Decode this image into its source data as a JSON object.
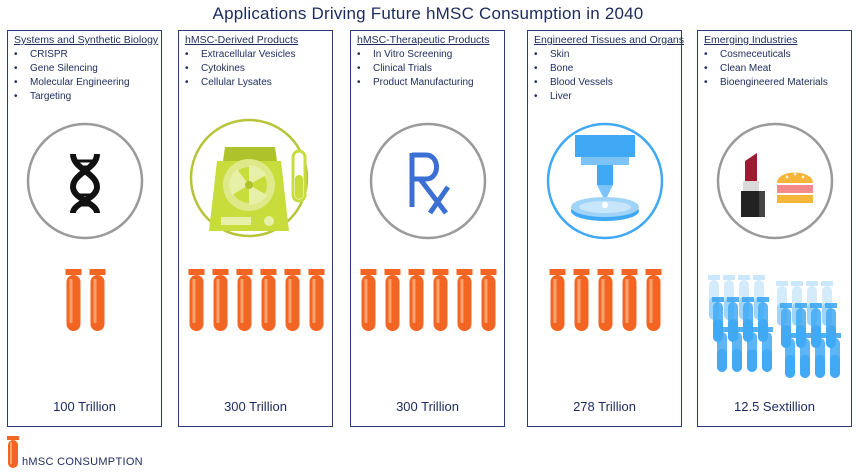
{
  "title": "Applications Driving Future hMSC Consumption in 2040",
  "colors": {
    "frame": "#2b3a78",
    "text": "#1d2a5c",
    "tube_orange": "#f26522",
    "tube_orange_light": "#f7a26d",
    "tube_blue": "#3fa9f5",
    "tube_blue_light": "#9fd3f7",
    "device_green": "#c8dc3c",
    "rx_blue": "#3b6fd4"
  },
  "panels": [
    {
      "heading": "Systems and Synthetic Biology",
      "items": [
        "CRISPR",
        "Gene Silencing",
        "Molecular Engineering",
        "Targeting"
      ],
      "icon": "dna-icon",
      "value": "100 Trillion",
      "tubes": 2
    },
    {
      "heading": "hMSC-Derived Products",
      "items": [
        "Extracellular Vesicles",
        "Cytokines",
        "Cellular Lysates"
      ],
      "icon": "centrifuge-icon",
      "value": "300 Trillion",
      "tubes": 6
    },
    {
      "heading": "hMSC-Therapeutic Products",
      "items": [
        "In Vitro Screening",
        "Clinical Trials",
        "Product Manufacturing"
      ],
      "icon": "rx-icon",
      "value": "300 Trillion",
      "tubes": 6
    },
    {
      "heading": "Engineered Tissues and Organs",
      "items": [
        "Skin",
        "Bone",
        "Blood Vessels",
        "Liver"
      ],
      "icon": "bioprinter-icon",
      "value": "278 Trillion",
      "tubes": 5
    },
    {
      "heading": "Emerging Industries",
      "items": [
        "Cosmeceuticals",
        "Clean Meat",
        "Bioengineered Materials"
      ],
      "icon": "lipstick-burger-icon",
      "value": "12.5 Sextillion",
      "tubes": 0
    }
  ],
  "legend": {
    "label": "hMSC CONSUMPTION",
    "icon": "orange-tube-icon"
  }
}
